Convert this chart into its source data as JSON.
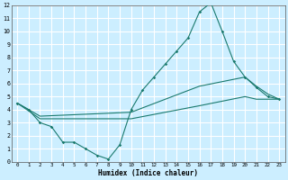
{
  "xlabel": "Humidex (Indice chaleur)",
  "bg_color": "#cceeff",
  "line_color": "#1a7a6e",
  "grid_color": "#ffffff",
  "xlim": [
    -0.5,
    23.5
  ],
  "ylim": [
    0,
    12
  ],
  "xticks": [
    0,
    1,
    2,
    3,
    4,
    5,
    6,
    7,
    8,
    9,
    10,
    11,
    12,
    13,
    14,
    15,
    16,
    17,
    18,
    19,
    20,
    21,
    22,
    23
  ],
  "yticks": [
    0,
    1,
    2,
    3,
    4,
    5,
    6,
    7,
    8,
    9,
    10,
    11,
    12
  ],
  "line1_x": [
    0,
    1,
    2,
    3,
    4,
    5,
    6,
    7,
    8,
    9,
    10,
    11,
    12,
    13,
    14,
    15,
    16,
    17,
    18,
    19,
    20,
    21,
    22,
    23
  ],
  "line1_y": [
    4.5,
    4.0,
    3.0,
    2.7,
    1.5,
    1.5,
    1.0,
    0.5,
    0.2,
    1.3,
    4.0,
    5.5,
    6.5,
    7.5,
    8.5,
    9.5,
    11.5,
    12.2,
    10.0,
    7.7,
    6.5,
    5.7,
    5.0,
    4.8
  ],
  "line2_x": [
    0,
    2,
    10,
    16,
    20,
    21,
    22,
    23
  ],
  "line2_y": [
    4.5,
    3.5,
    3.8,
    5.8,
    6.5,
    5.8,
    5.2,
    4.8
  ],
  "line3_x": [
    0,
    2,
    10,
    16,
    20,
    21,
    22,
    23
  ],
  "line3_y": [
    4.5,
    3.3,
    3.3,
    4.3,
    5.0,
    4.8,
    4.8,
    4.8
  ]
}
